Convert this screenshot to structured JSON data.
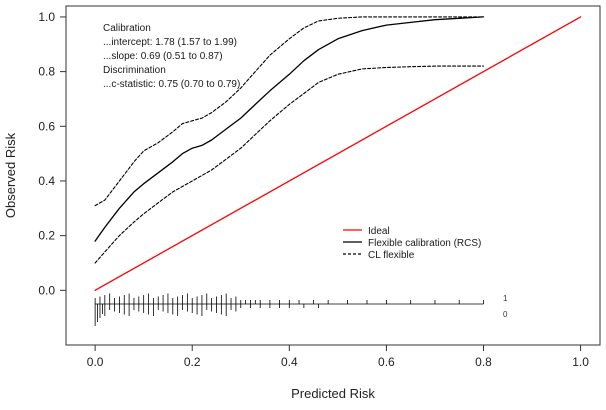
{
  "chart_data": {
    "type": "line",
    "xlabel": "Predicted Risk",
    "ylabel": "Observed Risk",
    "xlim": [
      -0.06,
      1.04
    ],
    "ylim": [
      -0.2,
      1.04
    ],
    "x_ticks": [
      "0.0",
      "0.2",
      "0.4",
      "0.6",
      "0.8",
      "1.0"
    ],
    "y_ticks": [
      "0.0",
      "0.2",
      "0.4",
      "0.6",
      "0.8",
      "1.0"
    ],
    "grid": false,
    "legend_position": "center-right",
    "colors": {
      "ideal": "#ff0000",
      "flexible": "#000000",
      "ci": "#000000",
      "axis": "#333333"
    },
    "series": [
      {
        "name": "Ideal",
        "style": "solid",
        "x": [
          0.0,
          1.0
        ],
        "y": [
          0.0,
          1.0
        ]
      },
      {
        "name": "Flexible calibration (RCS)",
        "style": "solid",
        "x": [
          0.0,
          0.02,
          0.05,
          0.08,
          0.1,
          0.13,
          0.16,
          0.18,
          0.2,
          0.22,
          0.24,
          0.27,
          0.3,
          0.33,
          0.36,
          0.4,
          0.43,
          0.46,
          0.5,
          0.55,
          0.6,
          0.65,
          0.7,
          0.75,
          0.8
        ],
        "y": [
          0.18,
          0.23,
          0.3,
          0.36,
          0.39,
          0.43,
          0.47,
          0.5,
          0.52,
          0.53,
          0.55,
          0.59,
          0.63,
          0.68,
          0.73,
          0.79,
          0.84,
          0.88,
          0.92,
          0.95,
          0.97,
          0.98,
          0.99,
          0.995,
          1.0
        ]
      },
      {
        "name": "CL flexible (upper)",
        "style": "dashed",
        "x": [
          0.0,
          0.02,
          0.05,
          0.08,
          0.1,
          0.13,
          0.16,
          0.18,
          0.2,
          0.22,
          0.24,
          0.27,
          0.3,
          0.33,
          0.36,
          0.4,
          0.43,
          0.46,
          0.5,
          0.55,
          0.6,
          0.65,
          0.7,
          0.75,
          0.8
        ],
        "y": [
          0.31,
          0.33,
          0.4,
          0.47,
          0.51,
          0.54,
          0.58,
          0.61,
          0.62,
          0.63,
          0.65,
          0.69,
          0.74,
          0.8,
          0.86,
          0.92,
          0.96,
          0.985,
          0.995,
          1.0,
          1.0,
          1.0,
          1.0,
          1.0,
          1.0
        ]
      },
      {
        "name": "CL flexible (lower)",
        "style": "dashed",
        "x": [
          0.0,
          0.02,
          0.05,
          0.08,
          0.1,
          0.13,
          0.16,
          0.18,
          0.2,
          0.22,
          0.24,
          0.27,
          0.3,
          0.33,
          0.36,
          0.4,
          0.43,
          0.46,
          0.5,
          0.55,
          0.6,
          0.65,
          0.7,
          0.75,
          0.8
        ],
        "y": [
          0.1,
          0.14,
          0.2,
          0.25,
          0.28,
          0.32,
          0.36,
          0.38,
          0.4,
          0.42,
          0.44,
          0.48,
          0.52,
          0.57,
          0.62,
          0.68,
          0.72,
          0.76,
          0.79,
          0.81,
          0.815,
          0.818,
          0.82,
          0.82,
          0.82
        ]
      }
    ],
    "annotations": [
      "Calibration",
      "...intercept: 1.78 (1.57 to 1.99)",
      "...slope: 0.69 (0.51 to 0.87)",
      "Discrimination",
      "...c-statistic: 0.75 (0.70 to 0.79)"
    ],
    "legend": [
      {
        "label": "Ideal",
        "style": "solid",
        "color": "#ff0000"
      },
      {
        "label": "Flexible calibration (RCS)",
        "style": "solid",
        "color": "#000000"
      },
      {
        "label": "CL flexible",
        "style": "dashed",
        "color": "#000000"
      }
    ],
    "rug": {
      "baseline_y": -0.05,
      "x_range": [
        0.0,
        0.8
      ],
      "labels": [
        "1",
        "0"
      ],
      "events_x": [
        0.0,
        0.01,
        0.02,
        0.03,
        0.04,
        0.05,
        0.06,
        0.07,
        0.08,
        0.09,
        0.1,
        0.11,
        0.12,
        0.13,
        0.14,
        0.15,
        0.16,
        0.17,
        0.18,
        0.19,
        0.2,
        0.21,
        0.22,
        0.23,
        0.24,
        0.25,
        0.26,
        0.27,
        0.28,
        0.29,
        0.3,
        0.31,
        0.32,
        0.33,
        0.34,
        0.36,
        0.38,
        0.4,
        0.42,
        0.45,
        0.48,
        0.52,
        0.56,
        0.6,
        0.65,
        0.7,
        0.75,
        0.8
      ],
      "nonevents_x": [
        0.0,
        0.005,
        0.01,
        0.015,
        0.02,
        0.03,
        0.04,
        0.05,
        0.06,
        0.07,
        0.08,
        0.09,
        0.1,
        0.11,
        0.12,
        0.13,
        0.14,
        0.15,
        0.16,
        0.17,
        0.18,
        0.19,
        0.2,
        0.21,
        0.22,
        0.23,
        0.24,
        0.25,
        0.26,
        0.27,
        0.28,
        0.29,
        0.3,
        0.32,
        0.34,
        0.36,
        0.38,
        0.4,
        0.43,
        0.46
      ]
    }
  }
}
